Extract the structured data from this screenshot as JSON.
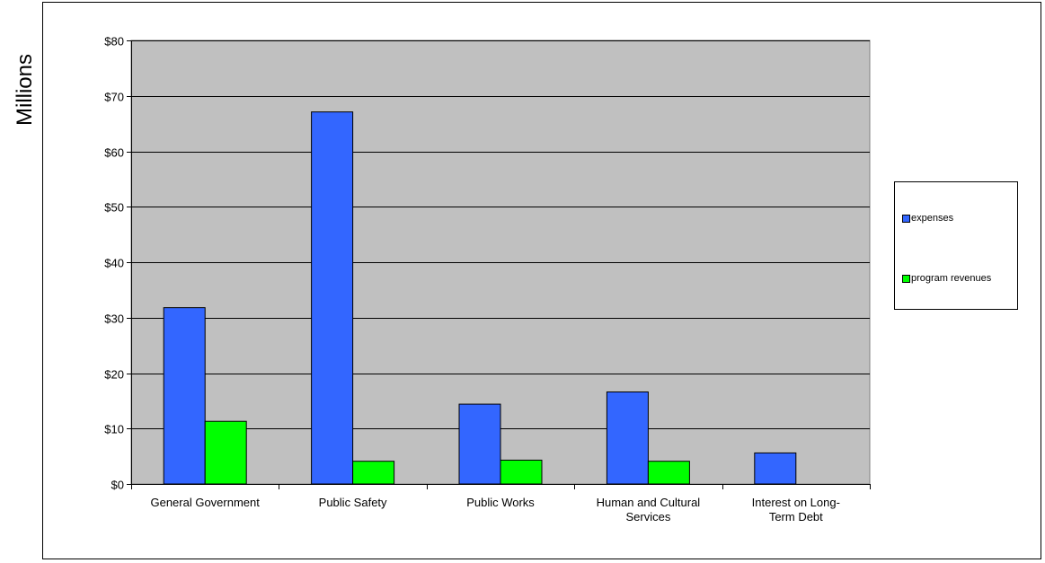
{
  "chart_data": {
    "type": "bar",
    "ylabel": "Millions",
    "xlabel": "",
    "ylim": [
      0,
      80
    ],
    "yticks": [
      "$0",
      "$10",
      "$20",
      "$30",
      "$40",
      "$50",
      "$60",
      "$70",
      "$80"
    ],
    "yticks_values": [
      0,
      10,
      20,
      30,
      40,
      50,
      60,
      70,
      80
    ],
    "categories": [
      [
        "General Government"
      ],
      [
        "Public Safety"
      ],
      [
        "Public Works"
      ],
      [
        "Human and Cultural",
        "Services"
      ],
      [
        "Interest on Long-",
        "Term Debt"
      ]
    ],
    "series": [
      {
        "name": "expenses",
        "color": "#3366FF",
        "values": [
          31.8,
          67.1,
          14.4,
          16.6,
          5.6
        ]
      },
      {
        "name": "program revenues",
        "color": "#00FF00",
        "values": [
          11.3,
          4.1,
          4.3,
          4.1,
          0
        ]
      }
    ],
    "plot_background": "#C0C0C0",
    "grid": true,
    "legend_position": "right"
  }
}
